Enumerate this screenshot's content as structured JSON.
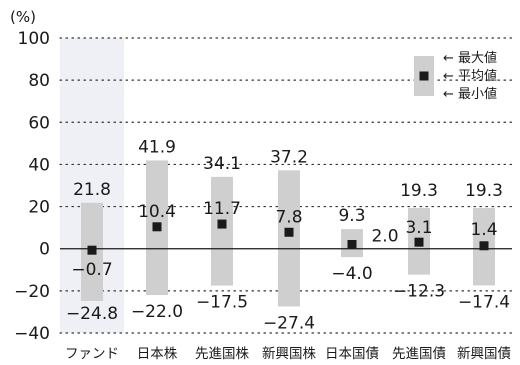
{
  "chart_data": {
    "type": "range",
    "unit_label": "(%)",
    "ylim": [
      -40,
      100
    ],
    "yticks": [
      -40,
      -20,
      0,
      20,
      40,
      60,
      80,
      100
    ],
    "grid": "horizontal-dotted",
    "highlight_category": "ファンド",
    "categories": [
      "ファンド",
      "日本株",
      "先進国株",
      "新興国株",
      "日本国債",
      "先進国債",
      "新興国債"
    ],
    "max": [
      21.8,
      41.9,
      34.1,
      37.2,
      9.3,
      19.3,
      19.3
    ],
    "mean": [
      -0.7,
      10.4,
      11.7,
      7.8,
      2.0,
      3.1,
      1.4
    ],
    "min": [
      -24.8,
      -22.0,
      -17.5,
      -27.4,
      -4.0,
      -12.3,
      -17.4
    ],
    "max_labels": [
      "21.8",
      "41.9",
      "34.1",
      "37.2",
      "9.3",
      "19.3",
      "19.3"
    ],
    "mean_labels": [
      "−0.7",
      "10.4",
      "11.7",
      "7.8",
      "2.0",
      "3.1",
      "1.4"
    ],
    "min_labels": [
      "−24.8",
      "−22.0",
      "−17.5",
      "−27.4",
      "−4.0",
      "−12.3",
      "−17.4"
    ],
    "legend": {
      "position": "top-right",
      "max": "← 最大値",
      "mean": "← 平均値",
      "min": "← 最小値"
    },
    "colors": {
      "bar": "#cfcfcf",
      "highlight_band": "#eef0f5",
      "marker": "#1a1a1a",
      "axis": "#1a1a1a",
      "grid": "#333333"
    }
  }
}
